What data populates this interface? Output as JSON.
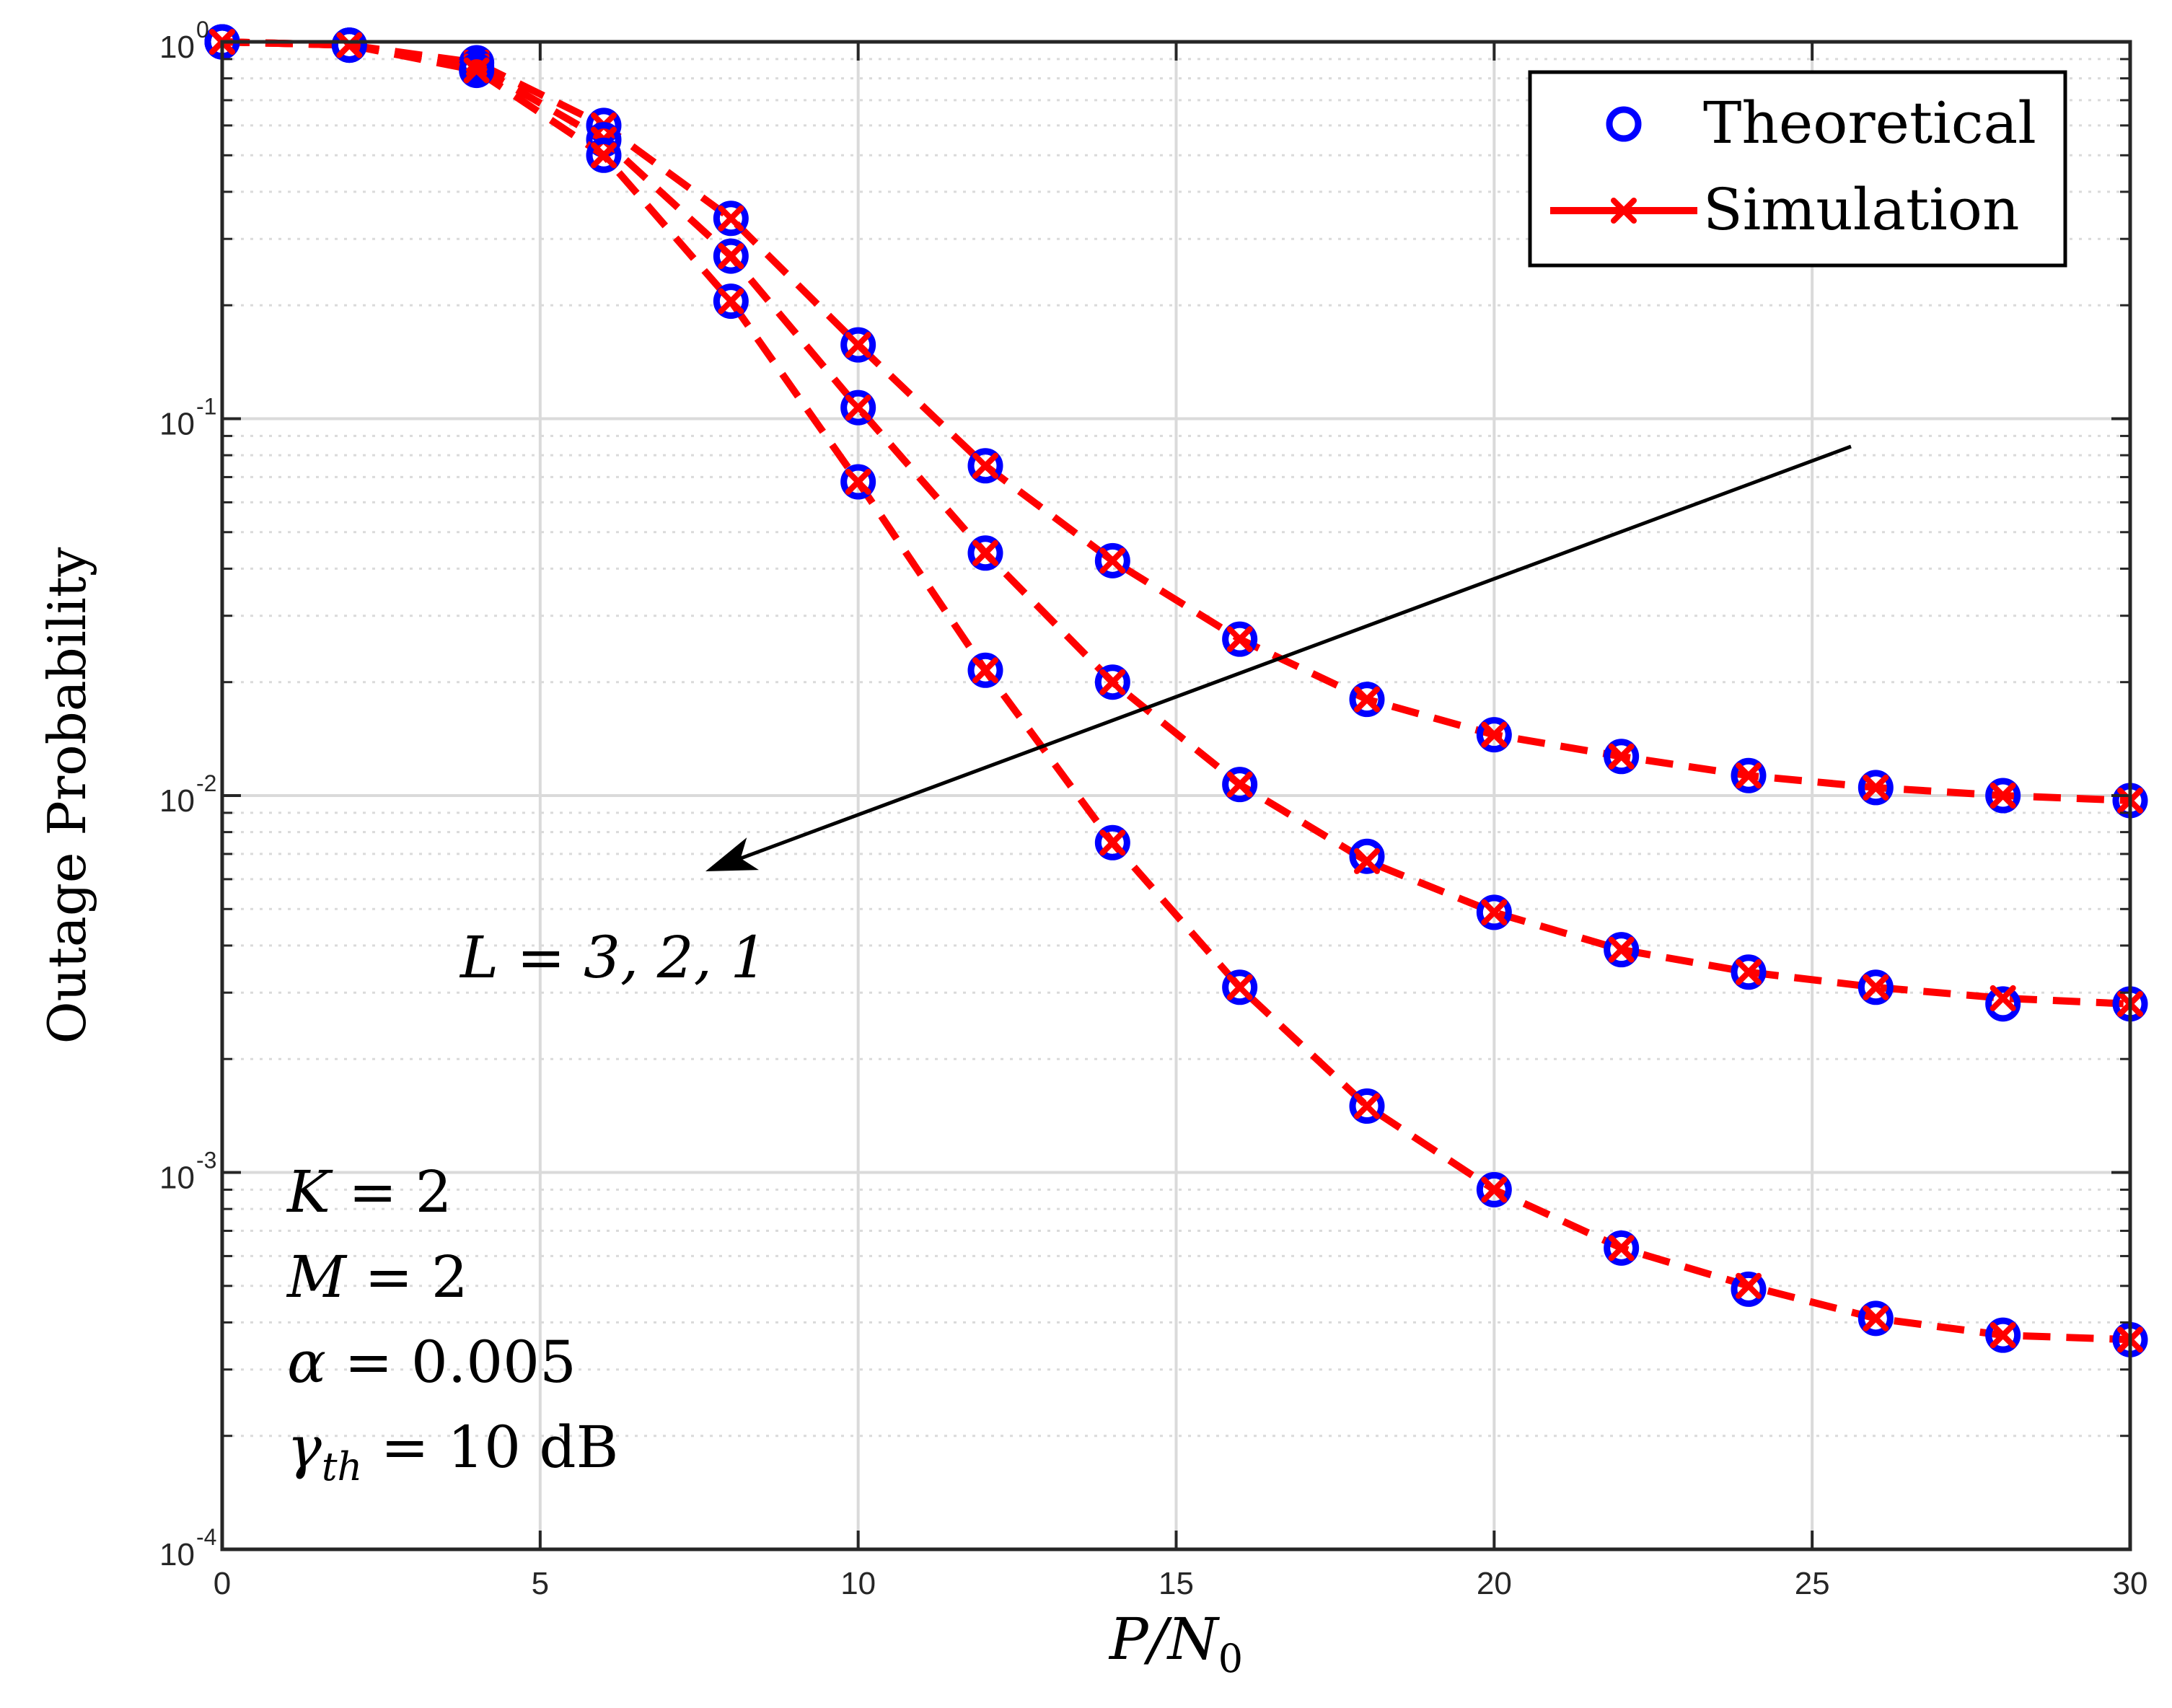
{
  "chart_data": {
    "type": "line",
    "y_scale": "log",
    "xlabel": "P/N₀",
    "xlabel_parts": {
      "base": "P/N",
      "sub": "0"
    },
    "ylabel": "Outage Probability",
    "xlim": [
      0,
      30
    ],
    "ylim": [
      0.0001,
      1
    ],
    "x_ticks": [
      0,
      5,
      10,
      15,
      20,
      25,
      30
    ],
    "y_ticks": [
      {
        "value": 1,
        "base": "10",
        "exp": "0"
      },
      {
        "value": 0.1,
        "base": "10",
        "exp": "-1"
      },
      {
        "value": 0.01,
        "base": "10",
        "exp": "-2"
      },
      {
        "value": 0.001,
        "base": "10",
        "exp": "-3"
      },
      {
        "value": 0.0001,
        "base": "10",
        "exp": "-4"
      }
    ],
    "grid": true,
    "legend_position": "top-right",
    "legend": [
      {
        "label": "Theoretical",
        "marker": "circle",
        "color": "#0000FF"
      },
      {
        "label": "Simulation",
        "marker": "x",
        "line": "dashed",
        "color": "#FF0000"
      }
    ],
    "x": [
      0,
      2,
      4,
      6,
      8,
      10,
      12,
      14,
      16,
      18,
      20,
      22,
      24,
      26,
      28,
      30
    ],
    "series": [
      {
        "name": "L = 1",
        "theoretical": [
          1.0,
          0.98,
          0.88,
          0.6,
          0.34,
          0.157,
          0.075,
          0.042,
          0.026,
          0.018,
          0.0145,
          0.0127,
          0.0113,
          0.0105,
          0.01,
          0.0097
        ],
        "simulation": [
          1.0,
          0.98,
          0.88,
          0.6,
          0.34,
          0.157,
          0.075,
          0.042,
          0.026,
          0.018,
          0.0145,
          0.0127,
          0.0113,
          0.0105,
          0.01,
          0.0097
        ]
      },
      {
        "name": "L = 2",
        "theoretical": [
          1.0,
          0.98,
          0.86,
          0.55,
          0.27,
          0.107,
          0.044,
          0.02,
          0.0107,
          0.0069,
          0.0049,
          0.0039,
          0.0034,
          0.0031,
          0.0028,
          0.0028
        ],
        "simulation": [
          1.0,
          0.98,
          0.86,
          0.55,
          0.27,
          0.107,
          0.044,
          0.02,
          0.0107,
          0.0067,
          0.0049,
          0.0039,
          0.0034,
          0.0031,
          0.0029,
          0.0028
        ]
      },
      {
        "name": "L = 3",
        "theoretical": [
          1.0,
          0.98,
          0.84,
          0.5,
          0.205,
          0.068,
          0.0215,
          0.0075,
          0.0031,
          0.0015,
          0.0009,
          0.00063,
          0.00049,
          0.00041,
          0.00037,
          0.00036
        ],
        "simulation": [
          1.0,
          0.98,
          0.84,
          0.5,
          0.205,
          0.068,
          0.0215,
          0.0075,
          0.0031,
          0.0015,
          0.0009,
          0.00063,
          0.0005,
          0.00041,
          0.00037,
          0.00036
        ]
      }
    ],
    "annotations": {
      "arrow_label": "L = 3, 2, 1",
      "params": [
        {
          "sym": "K",
          "sub": "",
          "rest": " = 2"
        },
        {
          "sym": "M",
          "sub": "",
          "rest": " = 2"
        },
        {
          "sym": "α",
          "sub": "",
          "rest": " = 0.005"
        },
        {
          "sym": "γ",
          "sub": "th",
          "rest": " = 10 dB"
        }
      ]
    },
    "colors": {
      "theoretical": "#0000FF",
      "simulation": "#FF0000",
      "grid": "#DADADA",
      "axis": "#262626"
    }
  }
}
